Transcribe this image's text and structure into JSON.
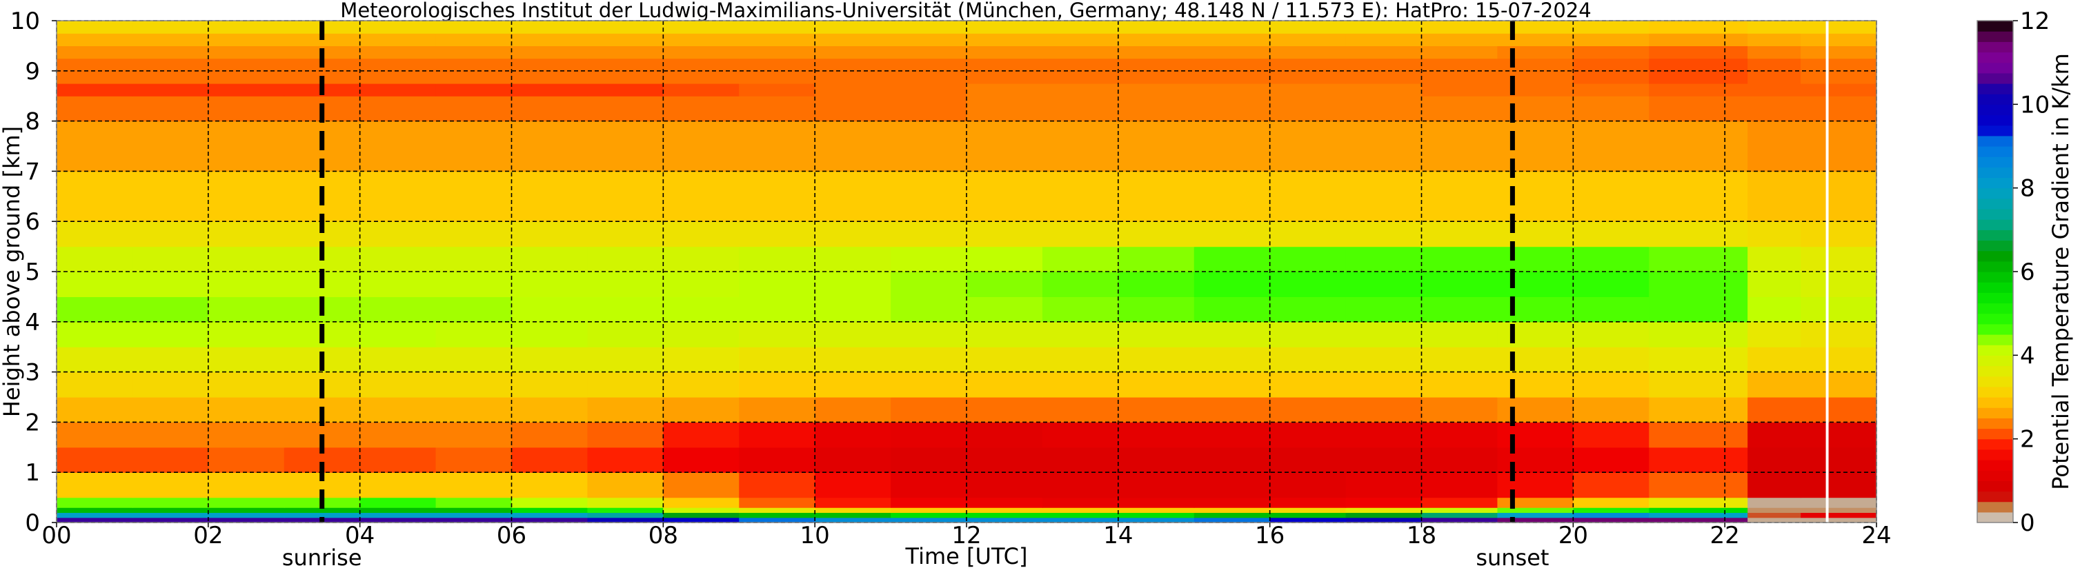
{
  "chart_data": {
    "type": "heatmap",
    "title": "Meteorologisches Institut der Ludwig-Maximilians-Universität (München, Germany; 48.148 N / 11.573 E):    HatPro: 15-07-2024",
    "xlabel": "Time [UTC]",
    "ylabel": "Height above ground [km]",
    "xlim": [
      0,
      24
    ],
    "ylim": [
      0,
      10
    ],
    "grid": true,
    "xticks": [
      0,
      2,
      4,
      6,
      8,
      10,
      12,
      14,
      16,
      18,
      20,
      22,
      24
    ],
    "xtick_labels": [
      "00",
      "02",
      "04",
      "06",
      "08",
      "10",
      "12",
      "14",
      "16",
      "18",
      "20",
      "22",
      "24"
    ],
    "yticks": [
      0,
      1,
      2,
      3,
      4,
      5,
      6,
      7,
      8,
      9,
      10
    ],
    "ytick_labels": [
      "0",
      "1",
      "2",
      "3",
      "4",
      "5",
      "6",
      "7",
      "8",
      "9",
      "10"
    ],
    "annotations": [
      {
        "label": "sunrise",
        "x": 3.5
      },
      {
        "label": "sunset",
        "x": 19.2
      }
    ],
    "missing_data_line_x": 23.35,
    "x_edges": [
      0,
      1,
      2,
      3,
      4,
      5,
      6,
      7,
      8,
      9,
      10,
      11,
      12,
      13,
      14,
      15,
      16,
      17,
      18,
      19,
      20,
      21,
      22.3,
      23,
      24
    ],
    "y_edges": [
      0,
      0.1,
      0.2,
      0.3,
      0.5,
      1,
      1.5,
      2,
      2.5,
      3,
      3.5,
      4,
      4.5,
      5,
      5.5,
      6,
      7,
      8,
      8.5,
      8.75,
      9.25,
      9.5,
      9.75,
      10
    ],
    "z": [
      [
        10.5,
        10.5,
        10.5,
        10.5,
        10.5,
        10.5,
        10.5,
        10,
        9.5,
        9,
        8.5,
        8.5,
        8.5,
        8.5,
        8.5,
        9,
        9.5,
        10,
        10.5,
        11.5,
        11.5,
        11.5,
        0.2,
        0.2
      ],
      [
        8,
        8,
        8,
        8,
        8,
        8,
        8,
        7.5,
        6.5,
        6,
        6,
        5.5,
        5.5,
        5.5,
        5.5,
        6,
        6,
        6.5,
        7,
        8,
        8.5,
        8,
        0.5,
        1.2
      ],
      [
        6,
        6,
        6,
        6,
        6,
        6,
        5.5,
        5,
        4,
        3.5,
        3.2,
        3,
        3,
        3,
        3,
        3,
        3.2,
        3.5,
        4,
        4.5,
        5,
        5.5,
        0.3,
        0.3
      ],
      [
        4.5,
        4.5,
        4.5,
        4.5,
        4.8,
        4.5,
        4.2,
        3.8,
        3,
        2.2,
        1.8,
        1.5,
        1.4,
        1.3,
        1.3,
        1.3,
        1.4,
        1.5,
        1.8,
        2.5,
        3,
        3.5,
        0.2,
        0.2
      ],
      [
        3,
        3,
        3,
        3,
        3,
        3,
        3,
        2.8,
        2.4,
        2,
        1.6,
        1.2,
        1.1,
        1.1,
        1.1,
        1.1,
        1.1,
        1.2,
        1.3,
        1.6,
        2,
        2.2,
        0.9,
        0.9
      ],
      [
        2.1,
        2.1,
        2.2,
        2.1,
        2.1,
        2.2,
        2,
        1.9,
        1.5,
        1.3,
        1.1,
        1,
        1,
        1,
        1,
        1,
        1,
        1,
        1.1,
        1.3,
        1.5,
        1.8,
        0.9,
        0.9
      ],
      [
        2.4,
        2.4,
        2.4,
        2.4,
        2.4,
        2.4,
        2.3,
        2.2,
        1.8,
        1.6,
        1.3,
        1.2,
        1.1,
        1.2,
        1.2,
        1.2,
        1.2,
        1.2,
        1.3,
        1.5,
        1.8,
        2.2,
        1,
        1
      ],
      [
        2.8,
        2.8,
        2.8,
        2.8,
        2.8,
        2.8,
        2.8,
        2.7,
        2.6,
        2.5,
        2.4,
        2.3,
        2.3,
        2.3,
        2.3,
        2.3,
        2.3,
        2.3,
        2.4,
        2.5,
        2.6,
        2.8,
        2.2,
        2.2
      ],
      [
        3.2,
        3.2,
        3.2,
        3.2,
        3.2,
        3.2,
        3.2,
        3.2,
        3.1,
        3,
        3,
        3,
        3,
        3,
        3,
        3,
        3,
        3,
        3,
        3,
        3,
        3.2,
        2.8,
        2.8
      ],
      [
        3.6,
        3.6,
        3.6,
        3.6,
        3.6,
        3.6,
        3.6,
        3.6,
        3.5,
        3.4,
        3.4,
        3.4,
        3.4,
        3.4,
        3.4,
        3.4,
        3.4,
        3.4,
        3.4,
        3.4,
        3.4,
        3.5,
        3.2,
        3.2
      ],
      [
        4.2,
        4.2,
        4.1,
        4.1,
        4.2,
        4.1,
        4.1,
        4,
        3.9,
        3.8,
        3.8,
        3.8,
        3.8,
        3.8,
        3.8,
        3.8,
        3.8,
        3.8,
        3.8,
        3.8,
        3.8,
        3.9,
        3.5,
        3.4
      ],
      [
        4.4,
        4.4,
        4.3,
        4.3,
        4.3,
        4.3,
        4.2,
        4.2,
        4.2,
        4.2,
        4.2,
        4.3,
        4.3,
        4.4,
        4.5,
        4.6,
        4.6,
        4.6,
        4.6,
        4.6,
        4.6,
        4.6,
        4.2,
        4
      ],
      [
        4.1,
        4.1,
        4.1,
        4.1,
        4.1,
        4.1,
        4.1,
        4.1,
        4.1,
        4.2,
        4.2,
        4.3,
        4.4,
        4.5,
        4.6,
        4.7,
        4.7,
        4.7,
        4.7,
        4.7,
        4.7,
        4.6,
        4,
        3.8
      ],
      [
        3.9,
        3.9,
        3.9,
        3.9,
        3.9,
        3.9,
        3.9,
        3.9,
        3.9,
        4,
        4,
        4.1,
        4.2,
        4.3,
        4.4,
        4.6,
        4.6,
        4.6,
        4.6,
        4.6,
        4.6,
        4.5,
        3.8,
        3.6
      ],
      [
        3.4,
        3.4,
        3.4,
        3.4,
        3.4,
        3.4,
        3.4,
        3.4,
        3.4,
        3.4,
        3.4,
        3.4,
        3.4,
        3.4,
        3.4,
        3.4,
        3.4,
        3.4,
        3.4,
        3.4,
        3.4,
        3.4,
        3.3,
        3.2
      ],
      [
        3,
        3,
        3,
        3,
        3,
        3,
        3,
        3,
        3,
        3,
        3,
        3,
        3,
        3,
        3,
        3,
        3,
        3,
        3,
        3,
        3,
        3,
        2.9,
        2.9
      ],
      [
        2.6,
        2.6,
        2.6,
        2.6,
        2.6,
        2.6,
        2.6,
        2.6,
        2.6,
        2.6,
        2.6,
        2.6,
        2.6,
        2.6,
        2.6,
        2.6,
        2.6,
        2.6,
        2.6,
        2.6,
        2.6,
        2.6,
        2.5,
        2.5
      ],
      [
        2.3,
        2.3,
        2.3,
        2.3,
        2.3,
        2.3,
        2.3,
        2.3,
        2.3,
        2.3,
        2.3,
        2.3,
        2.4,
        2.4,
        2.4,
        2.4,
        2.4,
        2.4,
        2.4,
        2.4,
        2.4,
        2.3,
        2.3,
        2.3
      ],
      [
        2.0,
        2.0,
        2.0,
        2.0,
        2.0,
        2.0,
        2.0,
        2.0,
        2.1,
        2.2,
        2.3,
        2.3,
        2.4,
        2.4,
        2.4,
        2.4,
        2.4,
        2.4,
        2.3,
        2.3,
        2.3,
        2.2,
        2.2,
        2.2
      ],
      [
        2.3,
        2.3,
        2.3,
        2.3,
        2.3,
        2.3,
        2.3,
        2.3,
        2.3,
        2.3,
        2.3,
        2.3,
        2.3,
        2.3,
        2.3,
        2.3,
        2.3,
        2.3,
        2.3,
        2.3,
        2.2,
        2.1,
        2.2,
        2.3
      ],
      [
        2.5,
        2.5,
        2.5,
        2.5,
        2.5,
        2.5,
        2.5,
        2.5,
        2.5,
        2.5,
        2.5,
        2.5,
        2.5,
        2.5,
        2.5,
        2.5,
        2.5,
        2.5,
        2.5,
        2.4,
        2.3,
        2.2,
        2.4,
        2.5
      ],
      [
        2.75,
        2.75,
        2.75,
        2.75,
        2.75,
        2.75,
        2.75,
        2.75,
        2.75,
        2.75,
        2.75,
        2.75,
        2.75,
        2.75,
        2.75,
        2.75,
        2.75,
        2.75,
        2.7,
        2.7,
        2.7,
        2.6,
        2.7,
        2.75
      ],
      [
        3.2,
        3.2,
        3.2,
        3.2,
        3.2,
        3.2,
        3.2,
        3.2,
        3.2,
        3.2,
        3.2,
        3.2,
        3.2,
        3.2,
        3.2,
        3.2,
        3.2,
        3.2,
        3.1,
        3.1,
        3.1,
        3.0,
        3.1,
        3.1
      ]
    ],
    "colorbar": {
      "label": "Potential Temperature Gradient in K/km",
      "range": [
        0,
        12
      ],
      "ticks": [
        0,
        2,
        4,
        6,
        8,
        10,
        12
      ],
      "tick_labels": [
        "0",
        "2",
        "4",
        "6",
        "8",
        "10",
        "12"
      ],
      "colormap": [
        [
          0,
          "#d8d8d8"
        ],
        [
          0.25,
          "#c0a080"
        ],
        [
          0.4,
          "#c87030"
        ],
        [
          0.55,
          "#d04020"
        ],
        [
          0.65,
          "#d00000"
        ],
        [
          1.5,
          "#f00000"
        ],
        [
          1.9,
          "#ff2000"
        ],
        [
          2.2,
          "#ff6000"
        ],
        [
          2.6,
          "#ffa000"
        ],
        [
          3.0,
          "#ffcc00"
        ],
        [
          3.5,
          "#e8e800"
        ],
        [
          4.2,
          "#c0ff00"
        ],
        [
          4.7,
          "#30ff00"
        ],
        [
          5.5,
          "#00e000"
        ],
        [
          6.4,
          "#00a000"
        ],
        [
          7.2,
          "#00a890"
        ],
        [
          8.0,
          "#00a0c8"
        ],
        [
          8.8,
          "#0080e0"
        ],
        [
          9.25,
          "#0060e0"
        ],
        [
          9.4,
          "#0000d0"
        ],
        [
          10.3,
          "#1000b0"
        ],
        [
          10.6,
          "#500090"
        ],
        [
          11.0,
          "#8000a0"
        ],
        [
          11.5,
          "#700070"
        ],
        [
          11.8,
          "#300020"
        ],
        [
          12,
          "#100008"
        ]
      ]
    }
  }
}
